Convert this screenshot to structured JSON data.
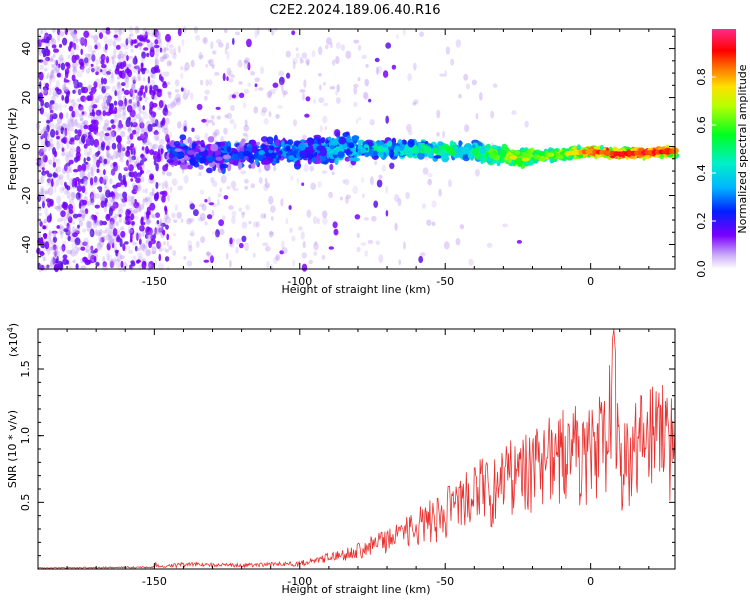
{
  "title": "C2E2.2024.189.06.40.R16",
  "chart_data": [
    {
      "type": "heatmap",
      "xlabel": "Height of straight line (km)",
      "ylabel": "Frequency (Hz)",
      "xlim": [
        -190,
        29
      ],
      "ylim": [
        -50,
        48
      ],
      "xticks": [
        -150,
        -100,
        -50,
        0
      ],
      "yticks": [
        -40,
        -20,
        0,
        20,
        40
      ],
      "colorbar": {
        "label": "Normalized spectral amplitude",
        "range": [
          0,
          1
        ],
        "ticks": [
          0.0,
          0.2,
          0.4,
          0.6,
          0.8
        ]
      },
      "ridge": {
        "x": [
          -145,
          -120,
          -100,
          -80,
          -60,
          -40,
          -25,
          -10,
          0,
          10,
          29
        ],
        "frequency_hz": [
          -3,
          -3,
          -2,
          -1,
          -1,
          -2,
          -5,
          -3,
          -2,
          -3,
          -2
        ],
        "amplitude": [
          0.2,
          0.22,
          0.28,
          0.35,
          0.45,
          0.5,
          0.7,
          0.65,
          0.85,
          0.9,
          0.9
        ]
      }
    },
    {
      "type": "line",
      "xlabel": "Height of straight line (km)",
      "ylabel": "SNR (10 * v/v)",
      "scale_note": "(x10",
      "scale_exp": "4",
      "scale_close": ")",
      "xlim": [
        -190,
        29
      ],
      "ylim": [
        0,
        1.8
      ],
      "xticks": [
        -150,
        -100,
        -50,
        0
      ],
      "yticks": [
        0.5,
        1.0,
        1.5
      ],
      "ytick_labels": [
        "0.5",
        "1.0",
        "1.5"
      ],
      "series": [
        {
          "color": "#e8312f",
          "envelope": {
            "x": [
              -190,
              -150,
              -140,
              -120,
              -100,
              -90,
              -80,
              -70,
              -60,
              -50,
              -40,
              -30,
              -20,
              -10,
              0,
              5,
              8,
              10,
              15,
              20,
              29
            ],
            "y": [
              0.01,
              0.02,
              0.05,
              0.04,
              0.06,
              0.12,
              0.2,
              0.3,
              0.45,
              0.6,
              0.8,
              0.95,
              1.05,
              1.2,
              1.25,
              1.35,
              1.8,
              1.1,
              1.3,
              1.4,
              1.37
            ]
          }
        }
      ]
    }
  ]
}
